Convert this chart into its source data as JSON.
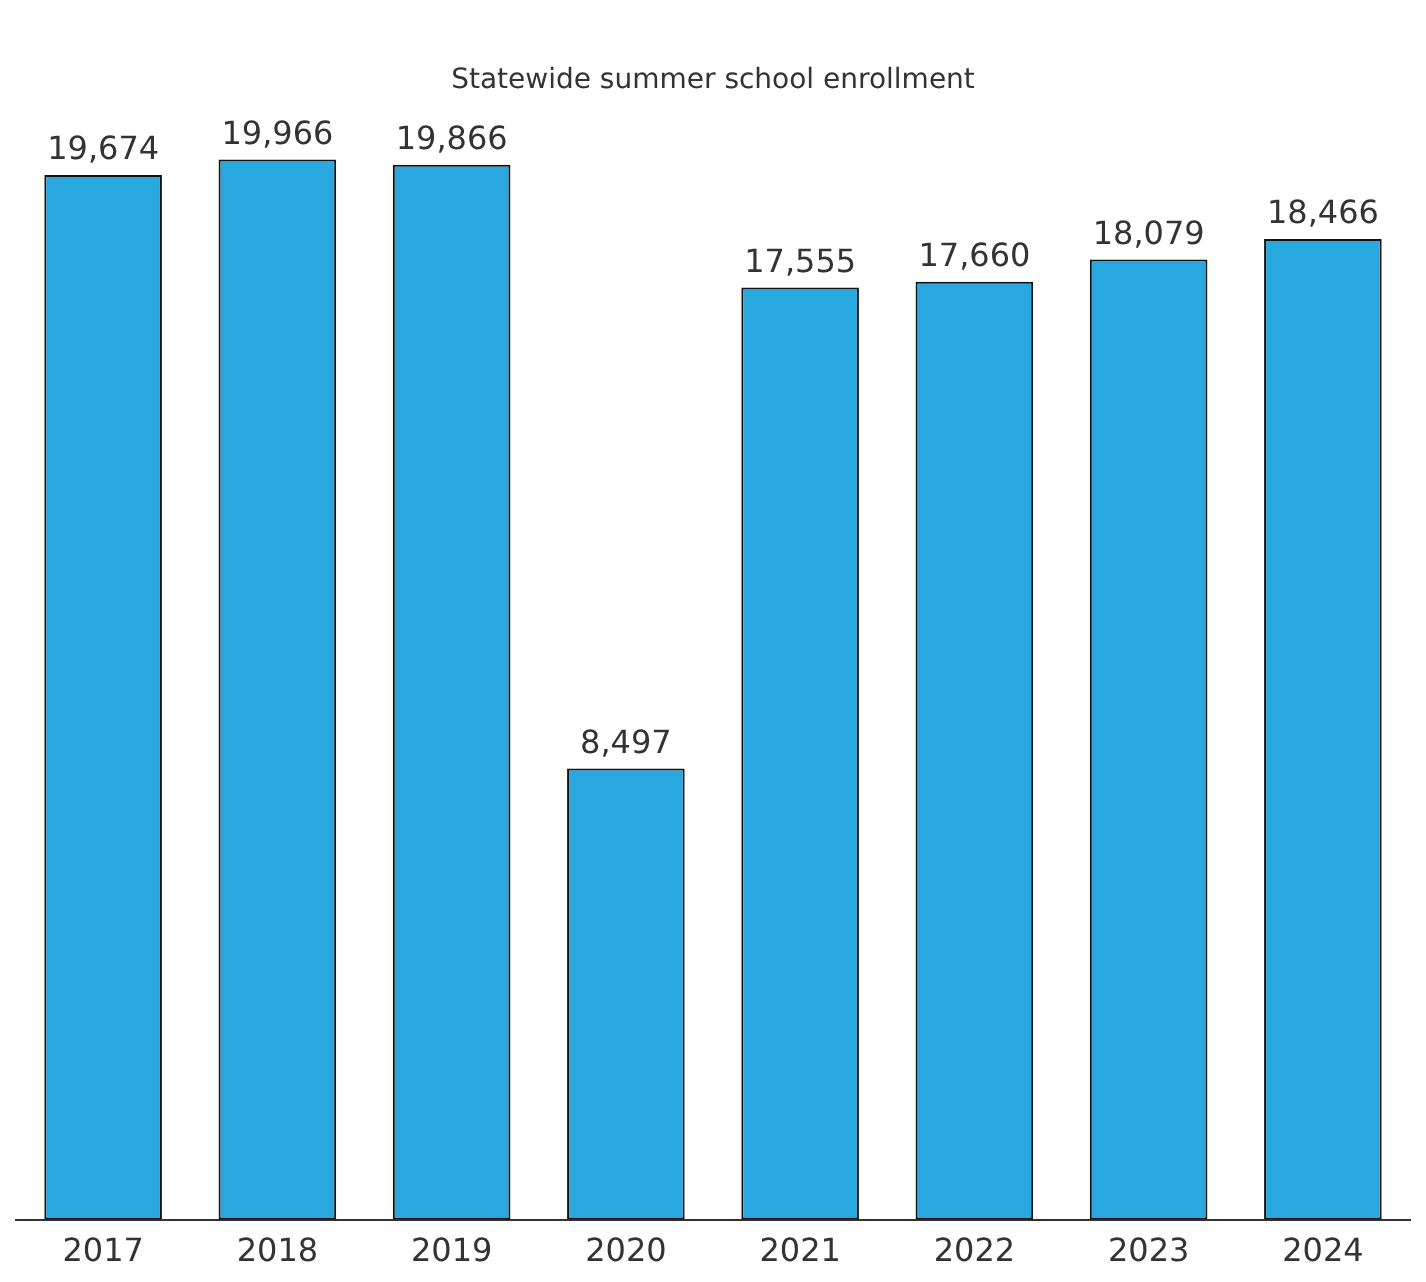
{
  "chart_data": {
    "type": "bar",
    "title": "Statewide summer school enrollment",
    "categories": [
      "2017",
      "2018",
      "2019",
      "2020",
      "2021",
      "2022",
      "2023",
      "2024"
    ],
    "values": [
      19674,
      19966,
      19866,
      8497,
      17555,
      17660,
      18079,
      18466
    ],
    "value_labels": [
      "19,674",
      "19,966",
      "19,866",
      "8,497",
      "17,555",
      "17,660",
      "18,079",
      "18,466"
    ],
    "color": "#29a8e0",
    "grid": false,
    "legend": false,
    "tick_labels": "x"
  }
}
